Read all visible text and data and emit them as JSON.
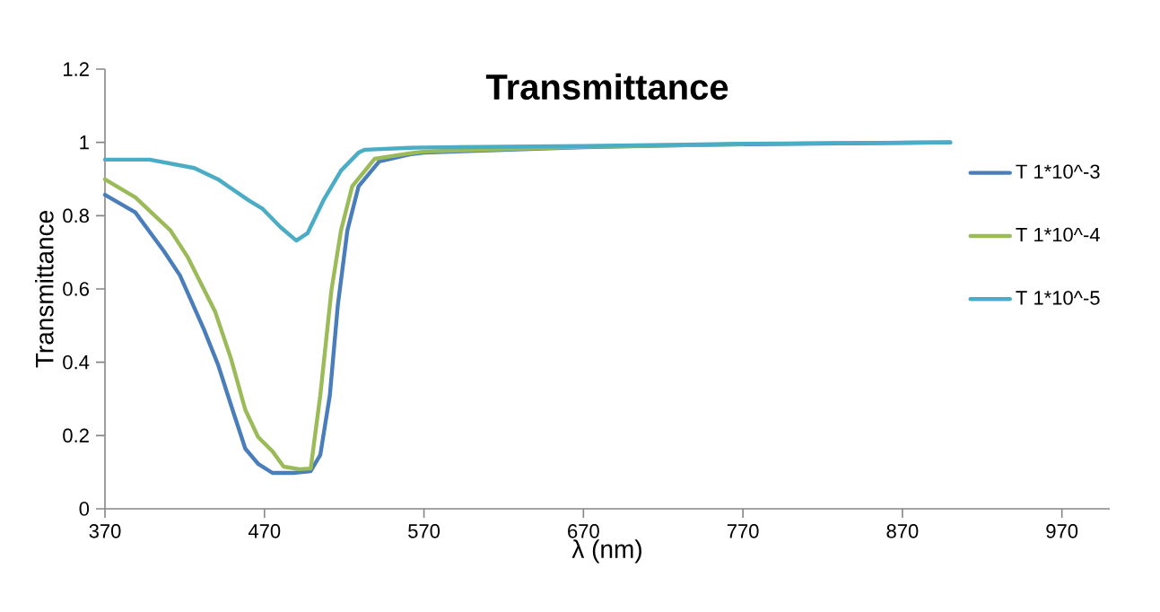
{
  "chart_data": {
    "type": "line",
    "title": "Transmittance",
    "xlabel": "λ (nm)",
    "ylabel": "Transmittance",
    "xlim": [
      370,
      1000
    ],
    "xticks": [
      370,
      470,
      570,
      670,
      770,
      870,
      970
    ],
    "ylim": [
      0,
      1.2
    ],
    "yticks": [
      0,
      0.2,
      0.4,
      0.6,
      0.8,
      1,
      1.2
    ],
    "legend": "right",
    "grid": false,
    "series": [
      {
        "name": "T 1*10^-3",
        "color": "#4a7ebb",
        "x": [
          370,
          389,
          407,
          417,
          432,
          441,
          450,
          458,
          466,
          475,
          488,
          499,
          505,
          511,
          516,
          522,
          529,
          542,
          561,
          570,
          670,
          770,
          900
        ],
        "values": [
          0.857,
          0.809,
          0.703,
          0.637,
          0.49,
          0.392,
          0.27,
          0.164,
          0.123,
          0.098,
          0.098,
          0.103,
          0.147,
          0.31,
          0.556,
          0.76,
          0.88,
          0.948,
          0.967,
          0.972,
          0.987,
          0.995,
          1.0
        ]
      },
      {
        "name": "T 1*10^-4",
        "color": "#9bbb59",
        "x": [
          370,
          389,
          411,
          422,
          439,
          449,
          458,
          466,
          475,
          482,
          492,
          499,
          505,
          512,
          518,
          525,
          539,
          561,
          570,
          670,
          770
        ],
        "values": [
          0.899,
          0.85,
          0.76,
          0.686,
          0.539,
          0.41,
          0.27,
          0.196,
          0.157,
          0.115,
          0.108,
          0.11,
          0.31,
          0.597,
          0.76,
          0.88,
          0.955,
          0.97,
          0.975,
          0.988,
          0.995
        ]
      },
      {
        "name": "T 1*10^-5",
        "color": "#4bacc6",
        "x": [
          370,
          398,
          426,
          441,
          460,
          469,
          480,
          490,
          497,
          507,
          518,
          529,
          533,
          561,
          570,
          670,
          770,
          900
        ],
        "values": [
          0.953,
          0.953,
          0.93,
          0.899,
          0.842,
          0.818,
          0.769,
          0.732,
          0.752,
          0.842,
          0.923,
          0.972,
          0.98,
          0.985,
          0.986,
          0.99,
          0.996,
          1.0
        ]
      }
    ]
  }
}
